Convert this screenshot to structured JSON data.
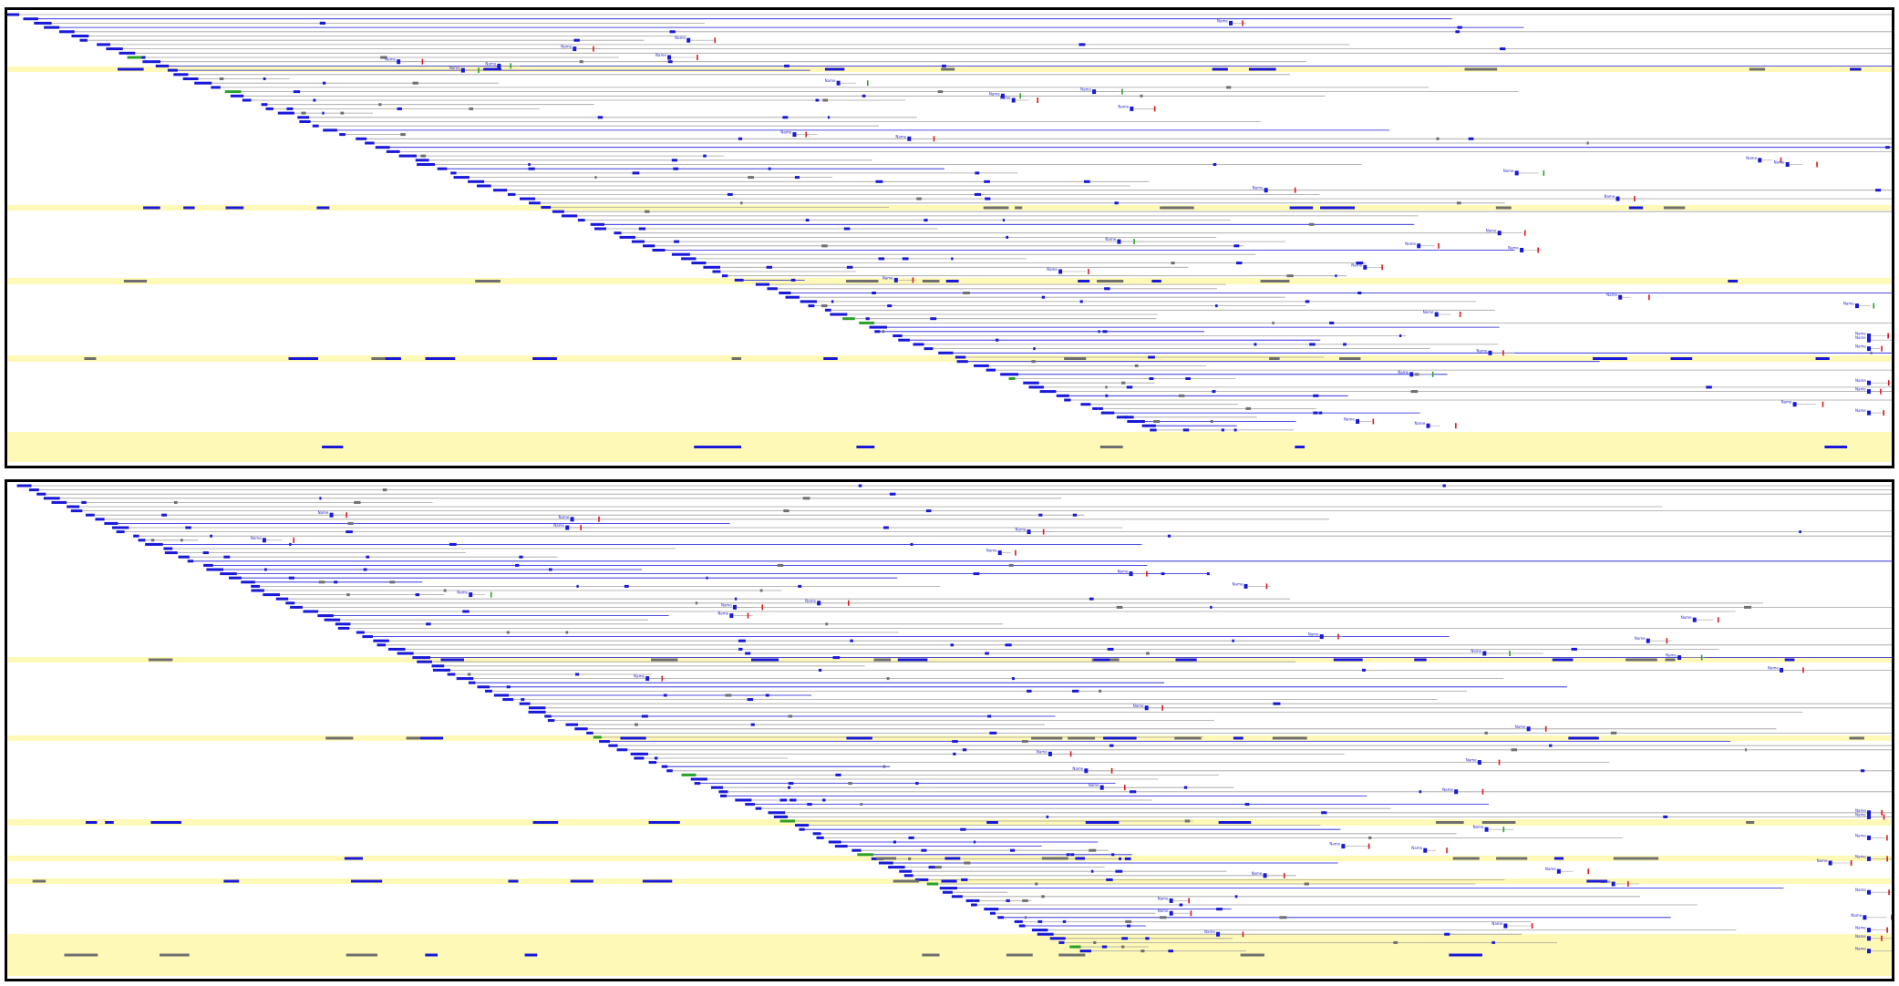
{
  "figure": {
    "title": "",
    "panels": [
      {
        "id": "top",
        "track_label": "Name"
      },
      {
        "id": "bottom",
        "track_label": "Name"
      }
    ],
    "colors": {
      "highlight_row": "#fff9b8",
      "gridline": "#a0a0a0",
      "block": "#1818d8",
      "muted_block": "#6f6f6f",
      "start_marker": "#2aa02a",
      "end_marker": "#e01818",
      "border": "#000000"
    }
  }
}
